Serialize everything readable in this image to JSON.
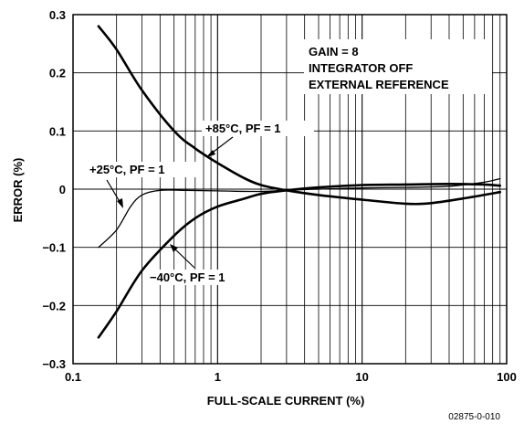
{
  "chart_data": {
    "type": "line",
    "title": "",
    "xlabel": "FULL-SCALE CURRENT (%)",
    "ylabel": "ERROR (%)",
    "x_scale": "log",
    "xlim": [
      0.1,
      100
    ],
    "ylim": [
      -0.3,
      0.3
    ],
    "grid": true,
    "x_tick_labels": [
      "0.1",
      "1",
      "10",
      "100"
    ],
    "y_tick_labels": [
      "0.3",
      "0.2",
      "0.1",
      "0",
      "−0.1",
      "−0.2",
      "−0.3"
    ],
    "y_ticks": [
      0.3,
      0.2,
      0.1,
      0,
      -0.1,
      -0.2,
      -0.3
    ],
    "conditions_box": [
      "GAIN = 8",
      "INTEGRATOR OFF",
      "EXTERNAL REFERENCE"
    ],
    "figure_id": "02875-0-010",
    "series": [
      {
        "name": "+85°C, PF = 1",
        "points": [
          [
            0.15,
            0.28
          ],
          [
            0.2,
            0.24
          ],
          [
            0.3,
            0.17
          ],
          [
            0.5,
            0.1
          ],
          [
            0.7,
            0.07
          ],
          [
            1,
            0.045
          ],
          [
            1.5,
            0.02
          ],
          [
            2,
            0.007
          ],
          [
            3,
            -0.002
          ],
          [
            5,
            -0.01
          ],
          [
            10,
            -0.018
          ],
          [
            20,
            -0.025
          ],
          [
            30,
            -0.024
          ],
          [
            50,
            -0.016
          ],
          [
            90,
            -0.005
          ]
        ]
      },
      {
        "name": "+25°C, PF = 1",
        "points": [
          [
            0.15,
            -0.1
          ],
          [
            0.2,
            -0.07
          ],
          [
            0.25,
            -0.03
          ],
          [
            0.3,
            -0.01
          ],
          [
            0.4,
            -0.002
          ],
          [
            0.6,
            -0.002
          ],
          [
            1,
            -0.003
          ],
          [
            2,
            -0.004
          ],
          [
            3,
            -0.002
          ],
          [
            5,
            0.0
          ],
          [
            10,
            0.002
          ],
          [
            20,
            0.003
          ],
          [
            40,
            0.005
          ],
          [
            70,
            0.012
          ],
          [
            90,
            0.018
          ]
        ]
      },
      {
        "name": "−40°C, PF = 1",
        "points": [
          [
            0.15,
            -0.255
          ],
          [
            0.2,
            -0.21
          ],
          [
            0.3,
            -0.14
          ],
          [
            0.5,
            -0.08
          ],
          [
            0.7,
            -0.05
          ],
          [
            1,
            -0.03
          ],
          [
            1.5,
            -0.017
          ],
          [
            2,
            -0.008
          ],
          [
            3,
            -0.002
          ],
          [
            5,
            0.003
          ],
          [
            10,
            0.007
          ],
          [
            20,
            0.008
          ],
          [
            40,
            0.009
          ],
          [
            70,
            0.008
          ],
          [
            90,
            0.006
          ]
        ]
      }
    ]
  }
}
